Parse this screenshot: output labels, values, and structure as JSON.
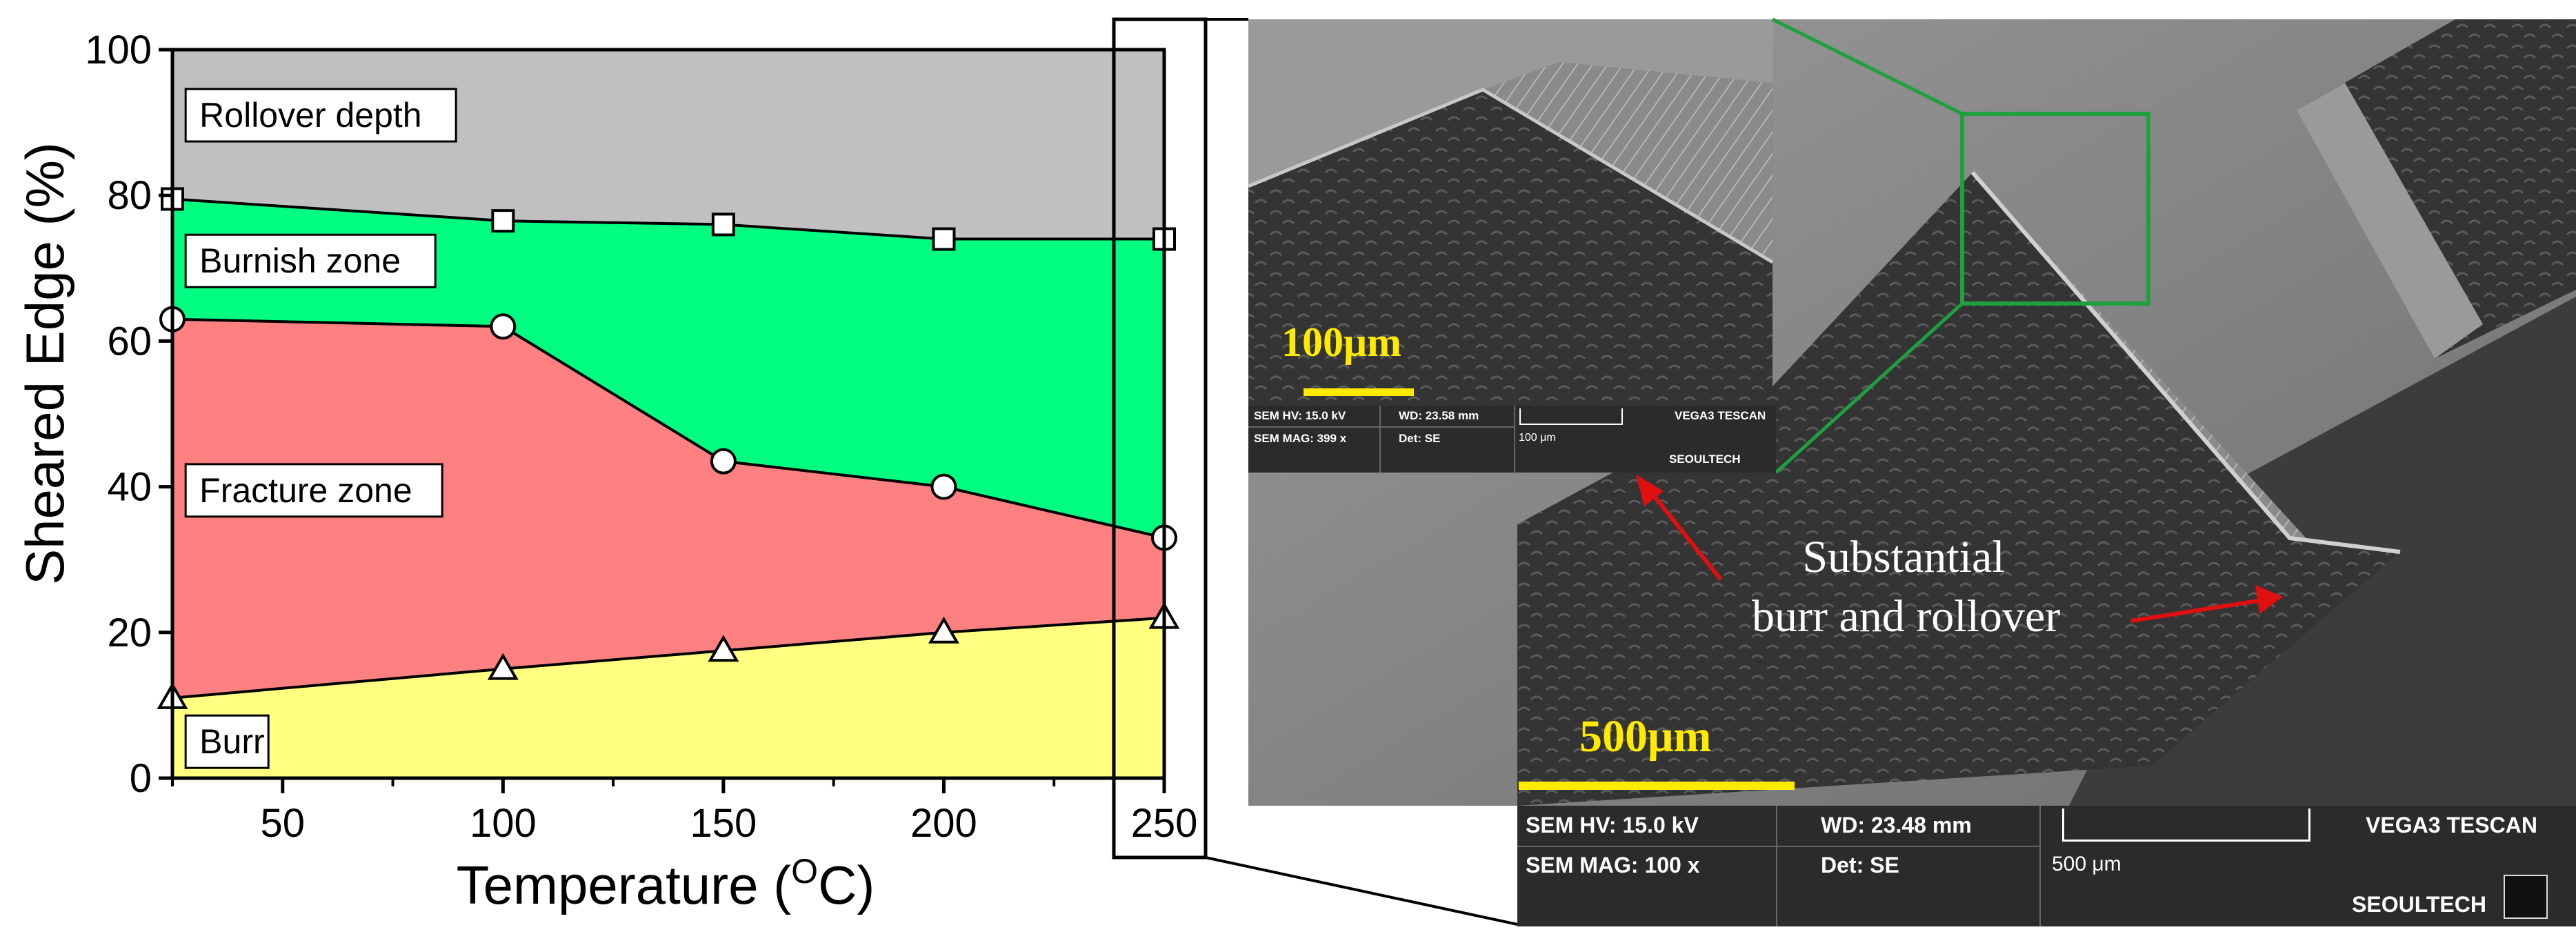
{
  "chart_data": {
    "type": "area",
    "stacked": true,
    "xlabel": "Temperature (",
    "xlabel_sup": "O",
    "xlabel_unit": "C)",
    "ylabel": "Sheared Edge (%)",
    "xlim": [
      25,
      250
    ],
    "ylim": [
      0,
      100
    ],
    "xticks": [
      "50",
      "100",
      "150",
      "200",
      "250"
    ],
    "yticks": [
      "0",
      "20",
      "40",
      "60",
      "80",
      "100"
    ],
    "x": [
      25,
      100,
      150,
      200,
      250
    ],
    "boundaries": [
      {
        "marker": "triangle",
        "values": [
          11,
          15,
          17.5,
          20,
          22
        ]
      },
      {
        "marker": "circle",
        "values": [
          63,
          62,
          43.5,
          40,
          33
        ]
      },
      {
        "marker": "square",
        "values": [
          79.5,
          76.5,
          76,
          74,
          74
        ]
      }
    ],
    "series": [
      {
        "name": "Burr",
        "color": "#ffff80"
      },
      {
        "name": "Fracture zone",
        "color": "#ff8080"
      },
      {
        "name": "Burnish zone",
        "color": "#00ff80"
      },
      {
        "name": "Rollover depth",
        "color": "#c0c0c0"
      }
    ]
  },
  "sem_main": {
    "scale_label": "500μm",
    "annotation_line1": "Substantial",
    "annotation_line2": "burr and rollover",
    "info": {
      "hv": "SEM HV: 15.0 kV",
      "wd": "WD: 23.48 mm",
      "brand": "VEGA3 TESCAN",
      "mag": "SEM MAG: 100 x",
      "det": "Det: SE",
      "scale": "500 μm",
      "org": "SEOULTECH"
    }
  },
  "sem_inset": {
    "scale_label": "100μm",
    "info": {
      "hv": "SEM HV: 15.0 kV",
      "wd": "WD: 23.58 mm",
      "brand": "VEGA3 TESCAN",
      "mag": "SEM MAG: 399 x",
      "det": "Det: SE",
      "scale": "100 μm",
      "org": "SEOULTECH"
    }
  },
  "colors": {
    "zoom_box": "#1fa040",
    "arrow": "#e01010",
    "scale_bar": "#ffea00"
  }
}
